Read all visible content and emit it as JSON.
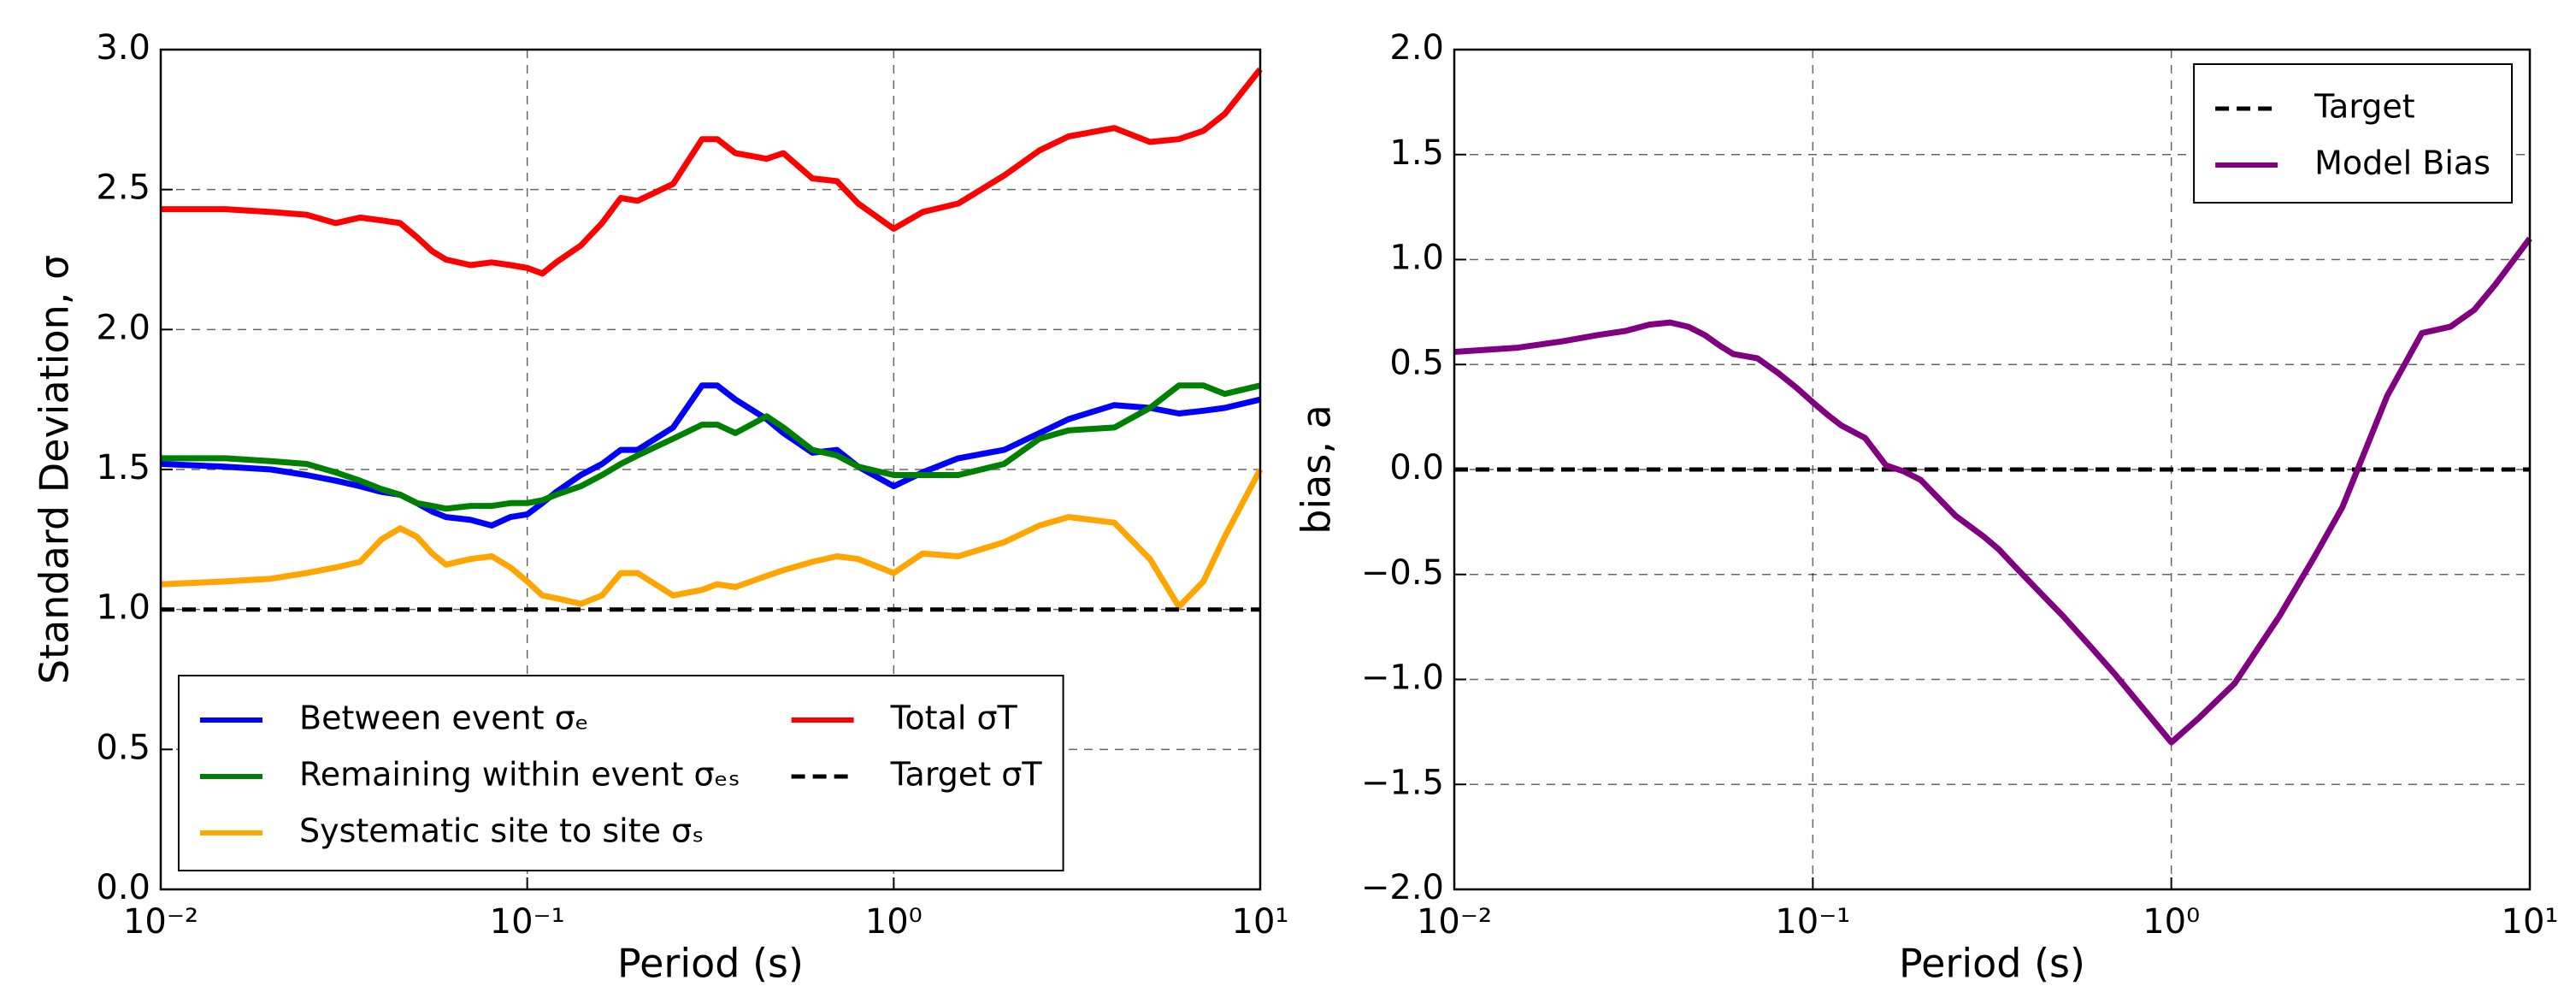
{
  "chart_data": [
    {
      "type": "line",
      "xscale": "log",
      "grid": true,
      "legend": "lower left",
      "legend_ncol": 2,
      "xlabel": "Period (s)",
      "ylabel": "Standard Deviation, σ",
      "xlim": [
        0.01,
        10
      ],
      "xticks": [
        {
          "value": 0.01,
          "label": "10⁻²"
        },
        {
          "value": 0.1,
          "label": "10⁻¹"
        },
        {
          "value": 1,
          "label": "10⁰"
        },
        {
          "value": 10,
          "label": "10¹"
        }
      ],
      "ylim": [
        0,
        3
      ],
      "yticks": [
        {
          "value": 0,
          "label": "0.0"
        },
        {
          "value": 0.5,
          "label": "0.5"
        },
        {
          "value": 1,
          "label": "1.0"
        },
        {
          "value": 1.5,
          "label": "1.5"
        },
        {
          "value": 2,
          "label": "2.0"
        },
        {
          "value": 2.5,
          "label": "2.5"
        },
        {
          "value": 3,
          "label": "3.0"
        }
      ],
      "x": [
        0.01,
        0.015,
        0.02,
        0.025,
        0.03,
        0.035,
        0.04,
        0.045,
        0.05,
        0.055,
        0.06,
        0.07,
        0.08,
        0.09,
        0.1,
        0.11,
        0.12,
        0.14,
        0.16,
        0.18,
        0.2,
        0.25,
        0.3,
        0.33,
        0.37,
        0.45,
        0.5,
        0.6,
        0.7,
        0.8,
        1,
        1.2,
        1.5,
        2,
        2.5,
        3,
        4,
        5,
        6,
        7,
        8,
        10
      ],
      "series": [
        {
          "name": "Between event σₑ",
          "color": "#0000ff",
          "values": [
            1.52,
            1.51,
            1.5,
            1.48,
            1.46,
            1.44,
            1.42,
            1.41,
            1.38,
            1.35,
            1.33,
            1.32,
            1.3,
            1.33,
            1.34,
            1.38,
            1.42,
            1.48,
            1.52,
            1.57,
            1.57,
            1.65,
            1.8,
            1.8,
            1.75,
            1.68,
            1.63,
            1.56,
            1.57,
            1.51,
            1.44,
            1.49,
            1.54,
            1.57,
            1.63,
            1.68,
            1.73,
            1.72,
            1.7,
            1.71,
            1.72,
            1.75
          ]
        },
        {
          "name": "Remaining within event σₑₛ",
          "color": "#008000",
          "values": [
            1.54,
            1.54,
            1.53,
            1.52,
            1.49,
            1.46,
            1.43,
            1.41,
            1.38,
            1.37,
            1.36,
            1.37,
            1.37,
            1.38,
            1.38,
            1.39,
            1.41,
            1.44,
            1.48,
            1.52,
            1.55,
            1.61,
            1.66,
            1.66,
            1.63,
            1.69,
            1.65,
            1.57,
            1.55,
            1.51,
            1.48,
            1.48,
            1.48,
            1.52,
            1.61,
            1.64,
            1.65,
            1.72,
            1.8,
            1.8,
            1.77,
            1.8
          ]
        },
        {
          "name": "Systematic site to site σₛ",
          "color": "#ffa500",
          "values": [
            1.09,
            1.1,
            1.11,
            1.13,
            1.15,
            1.17,
            1.25,
            1.29,
            1.26,
            1.2,
            1.16,
            1.18,
            1.19,
            1.15,
            1.1,
            1.05,
            1.04,
            1.02,
            1.05,
            1.13,
            1.13,
            1.05,
            1.07,
            1.09,
            1.08,
            1.12,
            1.14,
            1.17,
            1.19,
            1.18,
            1.13,
            1.2,
            1.19,
            1.24,
            1.3,
            1.33,
            1.31,
            1.18,
            1.01,
            1.1,
            1.26,
            1.5
          ]
        },
        {
          "name": "Total σT",
          "color": "#ff0000",
          "values": [
            2.43,
            2.43,
            2.42,
            2.41,
            2.38,
            2.4,
            2.39,
            2.38,
            2.33,
            2.28,
            2.25,
            2.23,
            2.24,
            2.23,
            2.22,
            2.2,
            2.24,
            2.3,
            2.38,
            2.47,
            2.46,
            2.52,
            2.68,
            2.68,
            2.63,
            2.61,
            2.63,
            2.54,
            2.53,
            2.45,
            2.36,
            2.42,
            2.45,
            2.55,
            2.64,
            2.69,
            2.72,
            2.67,
            2.68,
            2.71,
            2.77,
            2.93
          ]
        },
        {
          "name": "Target σT",
          "color": "#000000",
          "dashed": true,
          "x": [
            0.01,
            10
          ],
          "values": [
            1,
            1
          ]
        }
      ]
    },
    {
      "type": "line",
      "xscale": "log",
      "grid": true,
      "legend": "upper right",
      "legend_ncol": 1,
      "xlabel": "Period (s)",
      "ylabel": "bias, a",
      "xlim": [
        0.01,
        10
      ],
      "xticks": [
        {
          "value": 0.01,
          "label": "10⁻²"
        },
        {
          "value": 0.1,
          "label": "10⁻¹"
        },
        {
          "value": 1,
          "label": "10⁰"
        },
        {
          "value": 10,
          "label": "10¹"
        }
      ],
      "ylim": [
        -2,
        2
      ],
      "yticks": [
        {
          "value": -2,
          "label": "−2.0"
        },
        {
          "value": -1.5,
          "label": "−1.5"
        },
        {
          "value": -1,
          "label": "−1.0"
        },
        {
          "value": -0.5,
          "label": "−0.5"
        },
        {
          "value": 0,
          "label": "0.0"
        },
        {
          "value": 0.5,
          "label": "0.5"
        },
        {
          "value": 1,
          "label": "1.0"
        },
        {
          "value": 1.5,
          "label": "1.5"
        },
        {
          "value": 2,
          "label": "2.0"
        }
      ],
      "x": [
        0.01,
        0.015,
        0.02,
        0.025,
        0.03,
        0.035,
        0.04,
        0.045,
        0.05,
        0.055,
        0.06,
        0.07,
        0.08,
        0.09,
        0.1,
        0.11,
        0.12,
        0.14,
        0.16,
        0.18,
        0.2,
        0.25,
        0.3,
        0.33,
        0.37,
        0.45,
        0.5,
        0.6,
        0.7,
        0.8,
        1,
        1.2,
        1.5,
        2,
        2.5,
        3,
        4,
        5,
        6,
        7,
        8,
        10
      ],
      "series": [
        {
          "name": "Target",
          "color": "#000000",
          "dashed": true,
          "x": [
            0.01,
            10
          ],
          "values": [
            0,
            0
          ]
        },
        {
          "name": "Model Bias",
          "color": "#800080",
          "values": [
            0.56,
            0.58,
            0.61,
            0.64,
            0.66,
            0.69,
            0.7,
            0.68,
            0.64,
            0.59,
            0.55,
            0.53,
            0.46,
            0.39,
            0.32,
            0.26,
            0.21,
            0.15,
            0.02,
            -0.01,
            -0.05,
            -0.22,
            -0.32,
            -0.38,
            -0.47,
            -0.62,
            -0.7,
            -0.85,
            -0.98,
            -1.1,
            -1.3,
            -1.18,
            -1.02,
            -0.7,
            -0.42,
            -0.18,
            0.35,
            0.65,
            0.68,
            0.76,
            0.88,
            1.1
          ]
        }
      ]
    }
  ]
}
